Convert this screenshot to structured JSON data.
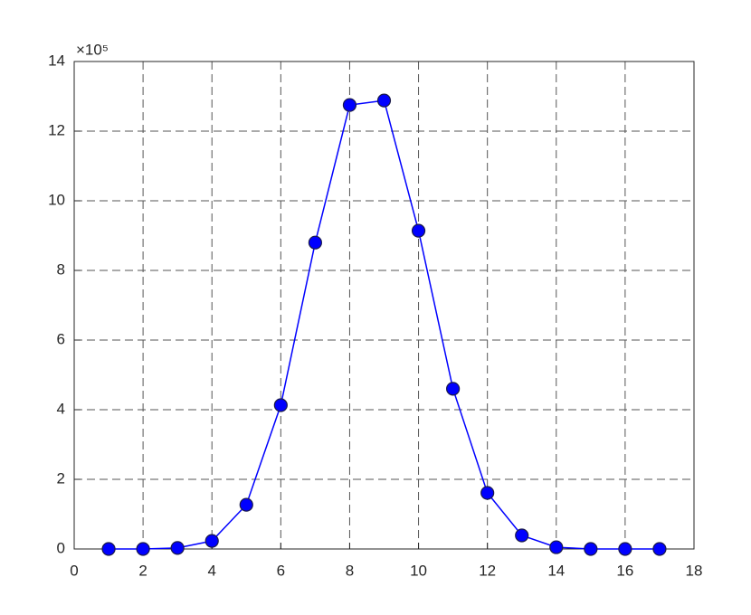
{
  "chart_data": {
    "type": "line",
    "y_exponent_label": "×10⁵",
    "x": [
      1,
      2,
      3,
      4,
      5,
      6,
      7,
      8,
      9,
      10,
      11,
      12,
      13,
      14,
      15,
      16,
      17
    ],
    "series": [
      {
        "color": "#0000ff",
        "values": [
          0,
          0,
          0.03,
          0.23,
          1.27,
          4.13,
          8.8,
          12.75,
          12.88,
          9.14,
          4.6,
          1.61,
          0.39,
          0.05,
          0,
          0,
          0
        ]
      }
    ],
    "xlim": [
      0,
      18
    ],
    "xticks": [
      0,
      2,
      4,
      6,
      8,
      10,
      12,
      14,
      16,
      18
    ],
    "ylim": [
      0,
      14
    ],
    "yticks": [
      0,
      2,
      4,
      6,
      8,
      10,
      12,
      14
    ],
    "grid": true
  }
}
